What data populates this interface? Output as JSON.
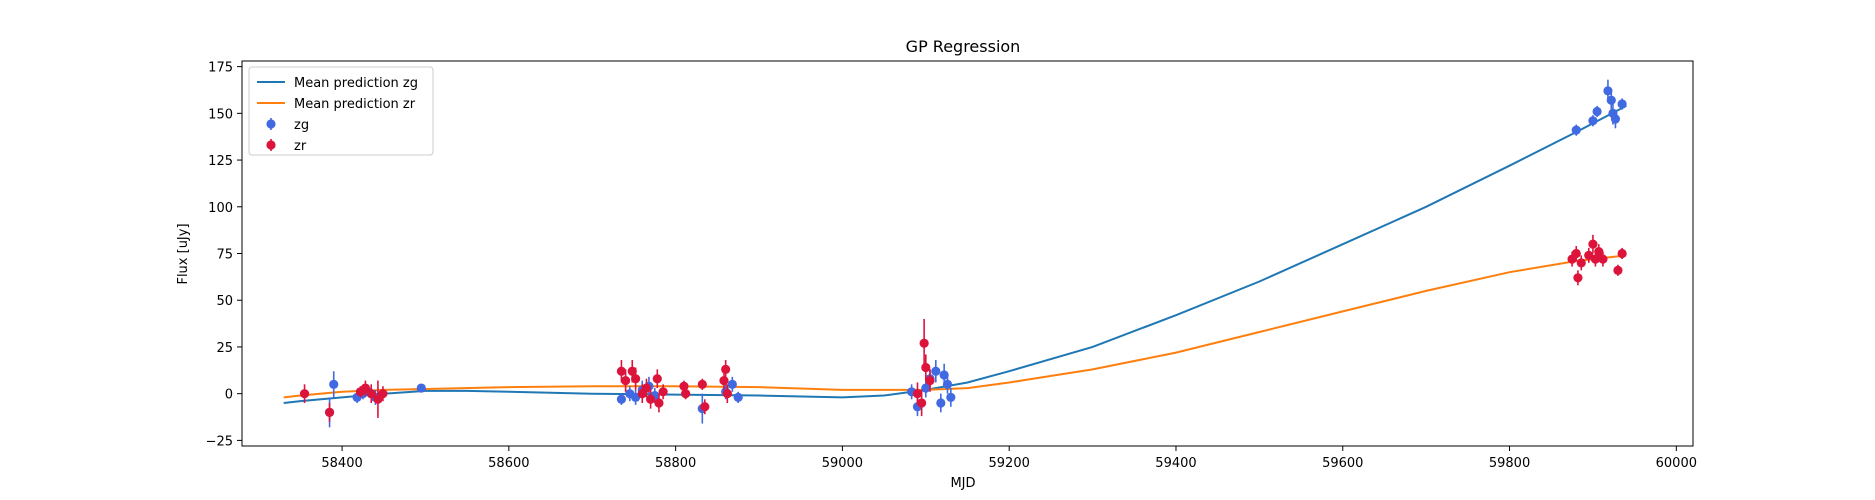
{
  "chart_data": {
    "type": "scatter",
    "title": "GP Regression",
    "xlabel": "MJD",
    "ylabel": "Flux [uJy]",
    "xlim": [
      58280,
      60020
    ],
    "ylim": [
      -28,
      178
    ],
    "x_ticks": [
      58400,
      58600,
      58800,
      59000,
      59200,
      59400,
      59600,
      59800,
      60000
    ],
    "x_tick_labels": [
      "58400",
      "58600",
      "58800",
      "59000",
      "59200",
      "59400",
      "59600",
      "59800",
      "60000"
    ],
    "y_ticks": [
      -25,
      0,
      25,
      50,
      75,
      100,
      125,
      150,
      175
    ],
    "y_tick_labels": [
      "−25",
      "0",
      "25",
      "50",
      "75",
      "100",
      "125",
      "150",
      "175"
    ],
    "grid": false,
    "legend_position": "top-left",
    "colors": {
      "mean_zg": "#1f77b4",
      "mean_zr": "#ff7f0e",
      "zg": "#4169e1",
      "zr": "#dc143c"
    },
    "lines": [
      {
        "name": "Mean prediction zg",
        "color": "#1f77b4",
        "x": [
          58330,
          58350,
          58400,
          58450,
          58500,
          58550,
          58600,
          58700,
          58800,
          58900,
          59000,
          59050,
          59100,
          59150,
          59200,
          59300,
          59400,
          59500,
          59600,
          59700,
          59800,
          59880,
          59940
        ],
        "y": [
          -5,
          -4,
          -2,
          0,
          1.5,
          1.5,
          1,
          0,
          -0.5,
          -1,
          -2,
          -1,
          2,
          6,
          12,
          25,
          42,
          60,
          80,
          100,
          122,
          140,
          154
        ]
      },
      {
        "name": "Mean prediction zr",
        "color": "#ff7f0e",
        "x": [
          58330,
          58350,
          58400,
          58450,
          58500,
          58600,
          58700,
          58800,
          58900,
          59000,
          59050,
          59100,
          59150,
          59200,
          59300,
          59400,
          59500,
          59600,
          59700,
          59800,
          59880,
          59940
        ],
        "y": [
          -2,
          -1,
          1,
          2,
          2.5,
          3.5,
          4,
          4,
          3.5,
          2,
          2,
          2,
          3,
          6,
          13,
          22,
          33,
          44,
          55,
          65,
          71,
          74
        ]
      }
    ],
    "series": [
      {
        "name": "zg",
        "color": "#4169e1",
        "points": [
          {
            "x": 58390,
            "y": 5,
            "err": 7
          },
          {
            "x": 58385,
            "y": -10,
            "err": 8
          },
          {
            "x": 58418,
            "y": -2,
            "err": 3
          },
          {
            "x": 58425,
            "y": 0,
            "err": 3
          },
          {
            "x": 58432,
            "y": 1,
            "err": 3
          },
          {
            "x": 58440,
            "y": -2,
            "err": 4
          },
          {
            "x": 58495,
            "y": 3,
            "err": 2
          },
          {
            "x": 58735,
            "y": -3,
            "err": 3
          },
          {
            "x": 58745,
            "y": 0,
            "err": 4
          },
          {
            "x": 58752,
            "y": -2,
            "err": 4
          },
          {
            "x": 58760,
            "y": 2,
            "err": 5
          },
          {
            "x": 58768,
            "y": 4,
            "err": 5
          },
          {
            "x": 58775,
            "y": -1,
            "err": 4
          },
          {
            "x": 58832,
            "y": -8,
            "err": 8
          },
          {
            "x": 58860,
            "y": 1,
            "err": 4
          },
          {
            "x": 58868,
            "y": 5,
            "err": 4
          },
          {
            "x": 58875,
            "y": -2,
            "err": 3
          },
          {
            "x": 59083,
            "y": 1,
            "err": 4
          },
          {
            "x": 59090,
            "y": -7,
            "err": 5
          },
          {
            "x": 59100,
            "y": 3,
            "err": 5
          },
          {
            "x": 59105,
            "y": 8,
            "err": 5
          },
          {
            "x": 59112,
            "y": 12,
            "err": 6
          },
          {
            "x": 59118,
            "y": -5,
            "err": 5
          },
          {
            "x": 59122,
            "y": 10,
            "err": 6
          },
          {
            "x": 59126,
            "y": 5,
            "err": 5
          },
          {
            "x": 59130,
            "y": -2,
            "err": 5
          },
          {
            "x": 59880,
            "y": 141,
            "err": 3
          },
          {
            "x": 59900,
            "y": 146,
            "err": 3
          },
          {
            "x": 59905,
            "y": 151,
            "err": 3
          },
          {
            "x": 59918,
            "y": 162,
            "err": 6
          },
          {
            "x": 59922,
            "y": 157,
            "err": 5
          },
          {
            "x": 59924,
            "y": 150,
            "err": 6
          },
          {
            "x": 59927,
            "y": 147,
            "err": 5
          },
          {
            "x": 59935,
            "y": 155,
            "err": 3
          }
        ]
      },
      {
        "name": "zr",
        "color": "#dc143c",
        "points": [
          {
            "x": 58355,
            "y": 0,
            "err": 5
          },
          {
            "x": 58385,
            "y": -10,
            "err": 5
          },
          {
            "x": 58422,
            "y": 1,
            "err": 3
          },
          {
            "x": 58428,
            "y": 3,
            "err": 4
          },
          {
            "x": 58435,
            "y": 0,
            "err": 5
          },
          {
            "x": 58443,
            "y": -3,
            "err": 10
          },
          {
            "x": 58449,
            "y": 0,
            "err": 4
          },
          {
            "x": 58735,
            "y": 12,
            "err": 6
          },
          {
            "x": 58740,
            "y": 7,
            "err": 6
          },
          {
            "x": 58748,
            "y": 12,
            "err": 6
          },
          {
            "x": 58752,
            "y": 8,
            "err": 6
          },
          {
            "x": 58760,
            "y": 0,
            "err": 5
          },
          {
            "x": 58765,
            "y": 3,
            "err": 5
          },
          {
            "x": 58770,
            "y": -3,
            "err": 5
          },
          {
            "x": 58778,
            "y": 8,
            "err": 5
          },
          {
            "x": 58780,
            "y": -5,
            "err": 5
          },
          {
            "x": 58785,
            "y": 1,
            "err": 4
          },
          {
            "x": 58810,
            "y": 4,
            "err": 3
          },
          {
            "x": 58812,
            "y": 0,
            "err": 3
          },
          {
            "x": 58832,
            "y": 5,
            "err": 3
          },
          {
            "x": 58835,
            "y": -7,
            "err": 4
          },
          {
            "x": 58858,
            "y": 7,
            "err": 5
          },
          {
            "x": 58860,
            "y": 13,
            "err": 5
          },
          {
            "x": 58862,
            "y": 0,
            "err": 5
          },
          {
            "x": 59090,
            "y": 0,
            "err": 6
          },
          {
            "x": 59095,
            "y": -5,
            "err": 7
          },
          {
            "x": 59098,
            "y": 27,
            "err": 13
          },
          {
            "x": 59100,
            "y": 14,
            "err": 7
          },
          {
            "x": 59105,
            "y": 7,
            "err": 6
          },
          {
            "x": 59875,
            "y": 72,
            "err": 4
          },
          {
            "x": 59880,
            "y": 75,
            "err": 4
          },
          {
            "x": 59882,
            "y": 62,
            "err": 4
          },
          {
            "x": 59886,
            "y": 70,
            "err": 4
          },
          {
            "x": 59895,
            "y": 74,
            "err": 4
          },
          {
            "x": 59900,
            "y": 80,
            "err": 5
          },
          {
            "x": 59903,
            "y": 72,
            "err": 4
          },
          {
            "x": 59907,
            "y": 76,
            "err": 4
          },
          {
            "x": 59912,
            "y": 72,
            "err": 4
          },
          {
            "x": 59930,
            "y": 66,
            "err": 3
          },
          {
            "x": 59935,
            "y": 75,
            "err": 3
          }
        ]
      }
    ]
  }
}
